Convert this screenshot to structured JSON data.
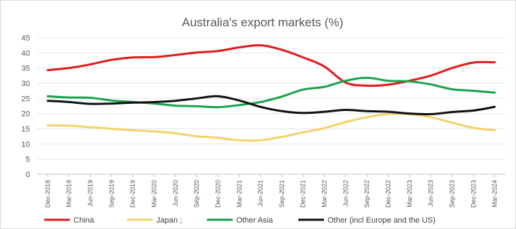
{
  "chart_data": {
    "type": "line",
    "title": "Australia's export markets (%)",
    "xlabel": "",
    "ylabel": "",
    "ylim": [
      0,
      45
    ],
    "yticks": [
      0,
      5,
      10,
      15,
      20,
      25,
      30,
      35,
      40,
      45
    ],
    "grid": true,
    "legend_position": "bottom",
    "x": [
      "Dec-2018",
      "Mar-2019",
      "Jun-2019",
      "Sep-2019",
      "Dec-2019",
      "Mar-2020",
      "Jun-2020",
      "Sep-2020",
      "Dec-2020",
      "Mar-2021",
      "Jun-2021",
      "Sep-2021",
      "Dec-2021",
      "Mar-2022",
      "Jun-2022",
      "Sep-2022",
      "Dec-2022",
      "Mar-2023",
      "Jun-2023",
      "Sep-2023",
      "Dec-2023",
      "Mar-2024"
    ],
    "series": [
      {
        "name": "China",
        "color": "#e31a1c",
        "values": [
          34.3,
          35.0,
          36.2,
          37.7,
          38.5,
          38.6,
          39.3,
          40.1,
          40.6,
          41.8,
          42.5,
          41.0,
          38.5,
          35.5,
          30.2,
          29.2,
          29.5,
          30.8,
          32.5,
          35.0,
          36.8,
          36.9
        ]
      },
      {
        "name": "Japan ;",
        "color": "#f2d36b",
        "values": [
          16.1,
          16.0,
          15.5,
          15.0,
          14.5,
          14.1,
          13.5,
          12.5,
          12.0,
          11.2,
          11.2,
          12.3,
          13.8,
          15.2,
          17.2,
          18.8,
          19.8,
          19.8,
          18.8,
          17.0,
          15.3,
          14.5
        ]
      },
      {
        "name": "Other Asia",
        "color": "#1aa34a",
        "values": [
          25.7,
          25.3,
          25.2,
          24.3,
          23.8,
          23.3,
          22.6,
          22.4,
          22.1,
          22.8,
          23.8,
          25.6,
          27.9,
          28.8,
          30.8,
          31.8,
          30.8,
          30.6,
          29.6,
          28.0,
          27.5,
          26.9
        ]
      },
      {
        "name": "Other (incl Europe and the US)",
        "color": "#111111",
        "values": [
          24.2,
          23.8,
          23.2,
          23.3,
          23.6,
          23.8,
          24.2,
          25.0,
          25.7,
          24.3,
          22.2,
          20.8,
          20.2,
          20.6,
          21.2,
          20.8,
          20.6,
          20.0,
          19.8,
          20.5,
          21.0,
          22.2
        ]
      }
    ]
  }
}
